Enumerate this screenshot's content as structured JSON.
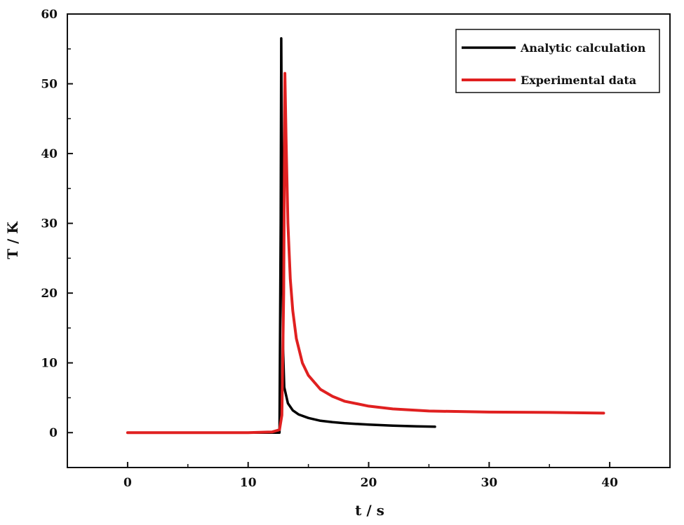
{
  "chart_data": {
    "type": "line",
    "xlabel": "t / s",
    "ylabel": "T / K",
    "xlim": [
      -5,
      45
    ],
    "ylim": [
      -5,
      60
    ],
    "xticks": [
      0,
      10,
      20,
      30,
      40
    ],
    "yticks": [
      0,
      10,
      20,
      30,
      40,
      50,
      60
    ],
    "legend_position": "top-right",
    "series": [
      {
        "name": "Analytic calculation",
        "color": "#000000",
        "points": [
          [
            0,
            0
          ],
          [
            5,
            0
          ],
          [
            10,
            0
          ],
          [
            12.6,
            0
          ],
          [
            12.7,
            30
          ],
          [
            12.75,
            56.5
          ],
          [
            12.8,
            40
          ],
          [
            12.9,
            12
          ],
          [
            13.0,
            6.5
          ],
          [
            13.3,
            4.2
          ],
          [
            13.7,
            3.2
          ],
          [
            14.2,
            2.6
          ],
          [
            15,
            2.1
          ],
          [
            16,
            1.7
          ],
          [
            17,
            1.5
          ],
          [
            18,
            1.35
          ],
          [
            20,
            1.15
          ],
          [
            22,
            1.0
          ],
          [
            24,
            0.9
          ],
          [
            25.5,
            0.85
          ]
        ]
      },
      {
        "name": "Experimental data",
        "color": "#e02020",
        "points": [
          [
            0,
            0
          ],
          [
            5,
            0
          ],
          [
            10,
            0
          ],
          [
            12,
            0.1
          ],
          [
            12.6,
            0.4
          ],
          [
            12.8,
            2.5
          ],
          [
            12.95,
            20
          ],
          [
            13.05,
            51.5
          ],
          [
            13.15,
            42
          ],
          [
            13.3,
            30
          ],
          [
            13.5,
            22
          ],
          [
            13.7,
            17.5
          ],
          [
            14,
            13.5
          ],
          [
            14.5,
            10
          ],
          [
            15,
            8.2
          ],
          [
            16,
            6.2
          ],
          [
            17,
            5.2
          ],
          [
            18,
            4.5
          ],
          [
            20,
            3.8
          ],
          [
            22,
            3.4
          ],
          [
            25,
            3.1
          ],
          [
            30,
            2.95
          ],
          [
            35,
            2.9
          ],
          [
            39.5,
            2.8
          ]
        ]
      }
    ]
  }
}
